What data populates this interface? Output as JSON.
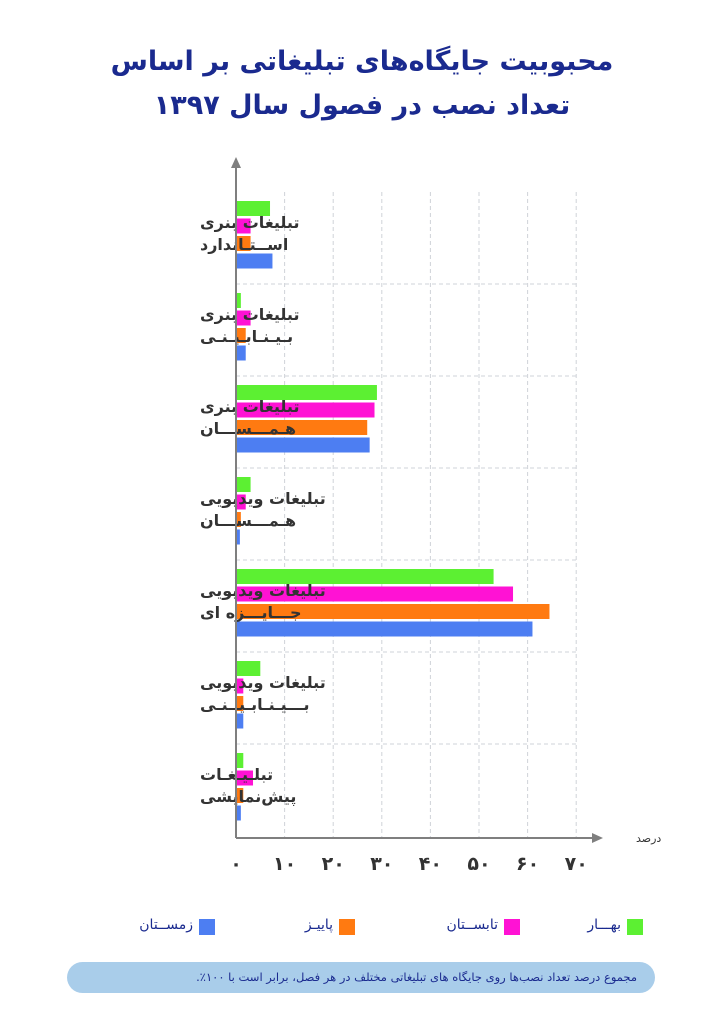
{
  "title_lines": [
    "محبوبیت جایگاه‌های تبلیغاتی بر اساس",
    "تعداد نصب در فصول سال ۱۳۹۷"
  ],
  "footnote": "مجموع درصد تعداد نصب‌ها روی جایگاه های تبلیغاتی مختلف در هر فصل، برابر است با ۱۰۰٪.",
  "colors": {
    "title": "#1a2a8f",
    "axis": "#7f7f7f",
    "grid": "#cfd3d8",
    "label": "#333333",
    "note_bg": "#a9cdea"
  },
  "chart_data": {
    "type": "bar",
    "orientation": "horizontal",
    "title": "محبوبیت جایگاه‌های تبلیغاتی بر اساس تعداد نصب در فصول سال ۱۳۹۷",
    "xlabel": "درصد",
    "ylabel": "",
    "xlim": [
      0,
      70
    ],
    "xticks": [
      0,
      10,
      20,
      30,
      40,
      50,
      60,
      70
    ],
    "xtick_labels": [
      "۰",
      "۱۰",
      "۲۰",
      "۳۰",
      "۴۰",
      "۵۰",
      "۶۰",
      "۷۰"
    ],
    "grid": true,
    "legend_position": "bottom",
    "categories": [
      [
        "تبلیغات بنری",
        "اســتـاندارد"
      ],
      [
        "تبلیغات بنری",
        "بـیـنـابـیـنـی"
      ],
      [
        "تبلیغات بنری",
        "هـمـــســـان"
      ],
      [
        "تبلیغات ویدیویی",
        "هـمـــســـان"
      ],
      [
        "تبلیغات ویدیویی",
        "جـــایـــزه ای"
      ],
      [
        "تبلیغات ویدیویی",
        "بـــیـنـابـیــنـی"
      ],
      [
        "تبلـیـغـات",
        "پیش‌نمایشی"
      ]
    ],
    "series": [
      {
        "name": "بهـــار",
        "color": "#5cf032",
        "values": [
          7,
          1,
          29,
          3,
          53,
          5,
          1.5
        ]
      },
      {
        "name": "تابســتان",
        "color": "#ff12d4",
        "values": [
          3,
          3,
          28.5,
          2,
          57,
          1.5,
          3.5
        ]
      },
      {
        "name": "پاییـز",
        "color": "#ff7a11",
        "values": [
          3,
          2,
          27,
          1,
          64.5,
          1.5,
          1.5
        ]
      },
      {
        "name": "زمســتان",
        "color": "#4d7ef2",
        "values": [
          7.5,
          2,
          27.5,
          0.8,
          61,
          1.5,
          1
        ]
      }
    ]
  }
}
